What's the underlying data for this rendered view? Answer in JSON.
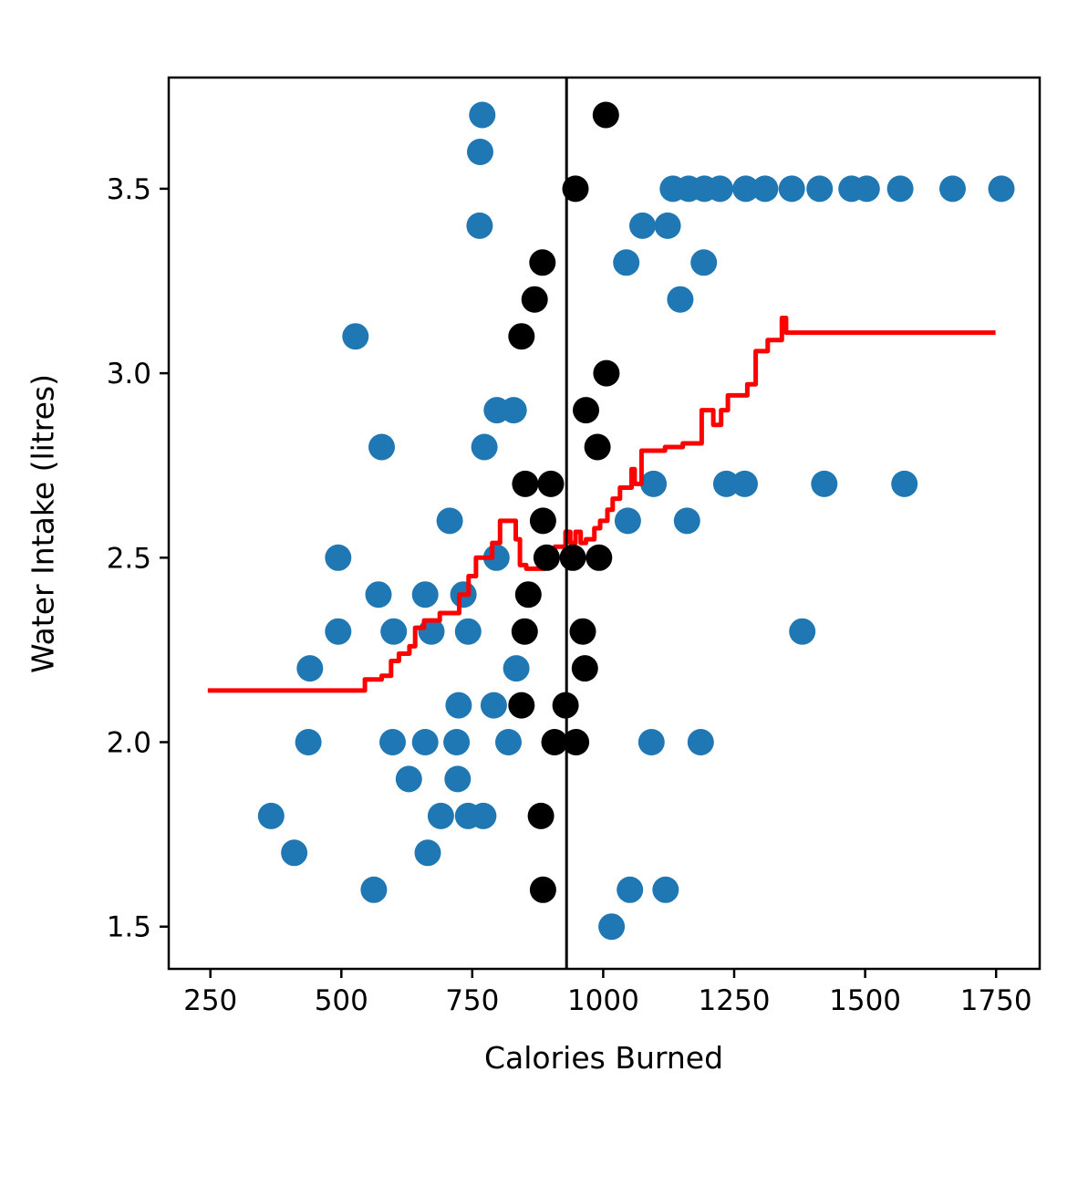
{
  "chart_data": {
    "type": "scatter",
    "title": "",
    "xlabel": "Calories Burned",
    "ylabel": "Water Intake (litres)",
    "xlim": [
      170.5,
      1833.2
    ],
    "ylim": [
      1.3855,
      3.8015
    ],
    "grid": false,
    "legend": "none",
    "x_ticks": [
      "250",
      "500",
      "750",
      "1000",
      "1250",
      "1500",
      "1750"
    ],
    "x_tick_values": [
      250,
      500,
      750,
      1000,
      1250,
      1500,
      1750
    ],
    "y_ticks": [
      "1.5",
      "2.0",
      "2.5",
      "3.0",
      "3.5"
    ],
    "y_tick_values": [
      1.5,
      2.0,
      2.5,
      3.0,
      3.5
    ],
    "marker_radius_px": 14.5,
    "colors": {
      "blue_points": "#1f77b4",
      "black_points": "#000000",
      "step_line": "#ff0000",
      "cutoff_line": "#000000",
      "frame": "#000000"
    },
    "series": [
      {
        "name": "blue-scatter",
        "type": "scatter",
        "color_key": "blue_points",
        "points": [
          [
            769,
            3.7
          ],
          [
            765,
            3.6
          ],
          [
            1133,
            3.5
          ],
          [
            1163,
            3.5
          ],
          [
            1193,
            3.5
          ],
          [
            1223,
            3.5
          ],
          [
            1272,
            3.5
          ],
          [
            1309,
            3.5
          ],
          [
            1360,
            3.5
          ],
          [
            1413,
            3.5
          ],
          [
            1474,
            3.5
          ],
          [
            1503,
            3.5
          ],
          [
            1567,
            3.5
          ],
          [
            1667,
            3.5
          ],
          [
            1760,
            3.5
          ],
          [
            764,
            3.4
          ],
          [
            1075,
            3.4
          ],
          [
            1123,
            3.4
          ],
          [
            1044,
            3.3
          ],
          [
            1192,
            3.3
          ],
          [
            1147,
            3.2
          ],
          [
            527,
            3.1
          ],
          [
            797,
            2.9
          ],
          [
            829,
            2.9
          ],
          [
            577,
            2.8
          ],
          [
            773,
            2.8
          ],
          [
            1096,
            2.7
          ],
          [
            1235,
            2.7
          ],
          [
            1270,
            2.7
          ],
          [
            1422,
            2.7
          ],
          [
            1575,
            2.7
          ],
          [
            707,
            2.6
          ],
          [
            1047,
            2.6
          ],
          [
            1160,
            2.6
          ],
          [
            494,
            2.5
          ],
          [
            796,
            2.5
          ],
          [
            571,
            2.4
          ],
          [
            660,
            2.4
          ],
          [
            733,
            2.4
          ],
          [
            494,
            2.3
          ],
          [
            600,
            2.3
          ],
          [
            672,
            2.3
          ],
          [
            742,
            2.3
          ],
          [
            1380,
            2.3
          ],
          [
            440,
            2.2
          ],
          [
            834,
            2.2
          ],
          [
            724,
            2.1
          ],
          [
            791,
            2.1
          ],
          [
            437,
            2.0
          ],
          [
            598,
            2.0
          ],
          [
            660,
            2.0
          ],
          [
            720,
            2.0
          ],
          [
            819,
            2.0
          ],
          [
            1092,
            2.0
          ],
          [
            1186,
            2.0
          ],
          [
            629,
            1.9
          ],
          [
            722,
            1.9
          ],
          [
            366,
            1.8
          ],
          [
            690,
            1.8
          ],
          [
            742,
            1.8
          ],
          [
            771,
            1.8
          ],
          [
            410,
            1.7
          ],
          [
            665,
            1.7
          ],
          [
            562,
            1.6
          ],
          [
            1051,
            1.6
          ],
          [
            1119,
            1.6
          ],
          [
            1016,
            1.5
          ]
        ]
      },
      {
        "name": "black-scatter",
        "type": "scatter",
        "color_key": "black_points",
        "points": [
          [
            1005,
            3.7
          ],
          [
            947,
            3.5
          ],
          [
            884,
            3.3
          ],
          [
            869,
            3.2
          ],
          [
            844,
            3.1
          ],
          [
            1006,
            3.0
          ],
          [
            967,
            2.9
          ],
          [
            989,
            2.8
          ],
          [
            851,
            2.7
          ],
          [
            900,
            2.7
          ],
          [
            885,
            2.6
          ],
          [
            892,
            2.5
          ],
          [
            942,
            2.5
          ],
          [
            992,
            2.5
          ],
          [
            857,
            2.4
          ],
          [
            850,
            2.3
          ],
          [
            961,
            2.3
          ],
          [
            965,
            2.2
          ],
          [
            844,
            2.1
          ],
          [
            928,
            2.1
          ],
          [
            907,
            2.0
          ],
          [
            948,
            2.0
          ],
          [
            881,
            1.8
          ],
          [
            885,
            1.6
          ]
        ]
      },
      {
        "name": "red-step-line",
        "type": "line",
        "color_key": "step_line",
        "stroke_width": 5,
        "points": [
          [
            245,
            2.14
          ],
          [
            545,
            2.14
          ],
          [
            545,
            2.17
          ],
          [
            577,
            2.17
          ],
          [
            577,
            2.18
          ],
          [
            595,
            2.18
          ],
          [
            595,
            2.22
          ],
          [
            610,
            2.22
          ],
          [
            610,
            2.24
          ],
          [
            630,
            2.24
          ],
          [
            630,
            2.26
          ],
          [
            641,
            2.26
          ],
          [
            641,
            2.31
          ],
          [
            658,
            2.31
          ],
          [
            658,
            2.33
          ],
          [
            688,
            2.33
          ],
          [
            688,
            2.35
          ],
          [
            725,
            2.35
          ],
          [
            725,
            2.4
          ],
          [
            743,
            2.4
          ],
          [
            743,
            2.45
          ],
          [
            757,
            2.45
          ],
          [
            757,
            2.5
          ],
          [
            788,
            2.5
          ],
          [
            788,
            2.54
          ],
          [
            803,
            2.54
          ],
          [
            803,
            2.6
          ],
          [
            833,
            2.6
          ],
          [
            833,
            2.55
          ],
          [
            841,
            2.55
          ],
          [
            841,
            2.48
          ],
          [
            853,
            2.48
          ],
          [
            853,
            2.47
          ],
          [
            888,
            2.47
          ],
          [
            888,
            2.52
          ],
          [
            908,
            2.52
          ],
          [
            908,
            2.53
          ],
          [
            928,
            2.53
          ],
          [
            928,
            2.57
          ],
          [
            937,
            2.57
          ],
          [
            937,
            2.54
          ],
          [
            947,
            2.54
          ],
          [
            947,
            2.57
          ],
          [
            957,
            2.57
          ],
          [
            957,
            2.54
          ],
          [
            967,
            2.54
          ],
          [
            967,
            2.55
          ],
          [
            983,
            2.55
          ],
          [
            983,
            2.58
          ],
          [
            994,
            2.58
          ],
          [
            994,
            2.6
          ],
          [
            1008,
            2.6
          ],
          [
            1008,
            2.63
          ],
          [
            1018,
            2.63
          ],
          [
            1018,
            2.66
          ],
          [
            1032,
            2.66
          ],
          [
            1032,
            2.69
          ],
          [
            1054,
            2.69
          ],
          [
            1054,
            2.74
          ],
          [
            1060,
            2.74
          ],
          [
            1060,
            2.7
          ],
          [
            1073,
            2.7
          ],
          [
            1073,
            2.79
          ],
          [
            1118,
            2.79
          ],
          [
            1118,
            2.8
          ],
          [
            1152,
            2.8
          ],
          [
            1152,
            2.81
          ],
          [
            1188,
            2.81
          ],
          [
            1188,
            2.9
          ],
          [
            1210,
            2.9
          ],
          [
            1210,
            2.86
          ],
          [
            1225,
            2.86
          ],
          [
            1225,
            2.9
          ],
          [
            1238,
            2.9
          ],
          [
            1238,
            2.94
          ],
          [
            1275,
            2.94
          ],
          [
            1275,
            2.97
          ],
          [
            1291,
            2.97
          ],
          [
            1291,
            3.06
          ],
          [
            1314,
            3.06
          ],
          [
            1314,
            3.09
          ],
          [
            1341,
            3.09
          ],
          [
            1341,
            3.15
          ],
          [
            1349,
            3.15
          ],
          [
            1349,
            3.11
          ],
          [
            1749,
            3.11
          ]
        ]
      },
      {
        "name": "cutoff-vline",
        "type": "vline",
        "x": 930,
        "color_key": "cutoff_line",
        "stroke_width": 3
      }
    ]
  }
}
